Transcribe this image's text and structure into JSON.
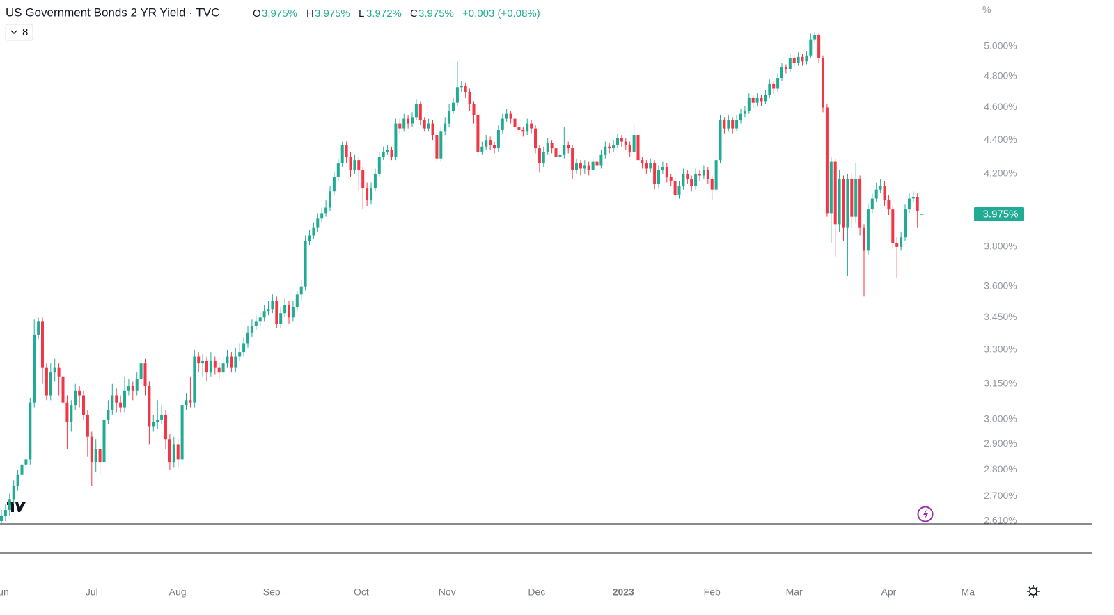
{
  "header": {
    "title": "US Government Bonds 2 YR Yield · TVC",
    "badge": "8",
    "o_label": "O",
    "o": "3.975%",
    "h_label": "H",
    "h": "3.975%",
    "l_label": "L",
    "l": "3.972%",
    "c_label": "C",
    "c": "3.975%",
    "change": "+0.003 (+0.08%)"
  },
  "chart_data": {
    "type": "candlestick",
    "log_scale": true,
    "up_color": "#22ab94",
    "down_color": "#f23645",
    "unit_label": "%",
    "last_price_label": "3.975%",
    "ylim": [
      2.6,
      5.33
    ],
    "yticks": [
      {
        "value": 2.61,
        "label": "2.610%"
      },
      {
        "value": 2.7,
        "label": "2.700%"
      },
      {
        "value": 2.8,
        "label": "2.800%"
      },
      {
        "value": 2.9,
        "label": "2.900%"
      },
      {
        "value": 3,
        "label": "3.000%"
      },
      {
        "value": 3.15,
        "label": "3.150%"
      },
      {
        "value": 3.3,
        "label": "3.300%"
      },
      {
        "value": 3.45,
        "label": "3.450%"
      },
      {
        "value": 3.6,
        "label": "3.600%"
      },
      {
        "value": 3.8,
        "label": "3.800%"
      },
      {
        "value": 4.2,
        "label": "4.200%"
      },
      {
        "value": 4.4,
        "label": "4.400%"
      },
      {
        "value": 4.6,
        "label": "4.600%"
      },
      {
        "value": 4.8,
        "label": "4.800%"
      },
      {
        "value": 5,
        "label": "5.000%"
      }
    ],
    "xlim": [
      -0.34,
      236.1
    ],
    "xticks": [
      {
        "value": 0.5,
        "label": "un"
      },
      {
        "value": 22,
        "label": "Jul"
      },
      {
        "value": 42.9,
        "label": "Aug"
      },
      {
        "value": 65.8,
        "label": "Sep"
      },
      {
        "value": 87.6,
        "label": "Oct"
      },
      {
        "value": 108.5,
        "label": "Nov"
      },
      {
        "value": 130.3,
        "label": "Dec"
      },
      {
        "value": 151.4,
        "label": "2023"
      },
      {
        "value": 173,
        "label": "Feb"
      },
      {
        "value": 193,
        "label": "Mar"
      },
      {
        "value": 216,
        "label": "Apr"
      },
      {
        "value": 235.3,
        "label": "Ma"
      }
    ],
    "open": [
      2.61,
      2.63,
      2.65,
      2.69,
      2.74,
      2.78,
      2.82,
      2.84,
      3.07,
      3.37,
      3.43,
      3.22,
      3.1,
      3.2,
      3.22,
      3.18,
      3.07,
      2.99,
      3.06,
      3.12,
      3.1,
      3.02,
      2.93,
      2.83,
      2.88,
      2.83,
      3.0,
      3.04,
      3.1,
      3.07,
      3.05,
      3.12,
      3.14,
      3.12,
      3.17,
      3.24,
      3.14,
      2.97,
      2.99,
      3.0,
      3.02,
      2.92,
      2.83,
      2.9,
      2.84,
      3.06,
      3.08,
      3.07,
      3.27,
      3.24,
      3.25,
      3.2,
      3.25,
      3.22,
      3.2,
      3.24,
      3.27,
      3.22,
      3.27,
      3.29,
      3.33,
      3.38,
      3.41,
      3.43,
      3.45,
      3.48,
      3.49,
      3.53,
      3.42,
      3.47,
      3.51,
      3.45,
      3.5,
      3.56,
      3.6,
      3.83,
      3.86,
      3.9,
      3.95,
      3.98,
      4.01,
      4.1,
      4.18,
      4.26,
      4.37,
      4.3,
      4.22,
      4.28,
      4.22,
      4.12,
      4.05,
      4.12,
      4.2,
      4.3,
      4.33,
      4.34,
      4.3,
      4.5,
      4.47,
      4.53,
      4.5,
      4.54,
      4.62,
      4.52,
      4.47,
      4.5,
      4.43,
      4.29,
      4.45,
      4.5,
      4.58,
      4.63,
      4.73,
      4.74,
      4.7,
      4.62,
      4.55,
      4.33,
      4.36,
      4.4,
      4.37,
      4.35,
      4.46,
      4.53,
      4.56,
      4.53,
      4.48,
      4.46,
      4.45,
      4.5,
      4.47,
      4.35,
      4.26,
      4.33,
      4.38,
      4.35,
      4.3,
      4.31,
      4.37,
      4.35,
      4.22,
      4.26,
      4.23,
      4.25,
      4.22,
      4.27,
      4.25,
      4.31,
      4.36,
      4.35,
      4.37,
      4.41,
      4.39,
      4.37,
      4.33,
      4.43,
      4.28,
      4.26,
      4.23,
      4.26,
      4.14,
      4.22,
      4.24,
      4.18,
      4.16,
      4.08,
      4.13,
      4.2,
      4.17,
      4.13,
      4.2,
      4.19,
      4.22,
      4.17,
      4.11,
      4.28,
      4.52,
      4.47,
      4.52,
      4.47,
      4.52,
      4.56,
      4.58,
      4.66,
      4.63,
      4.66,
      4.64,
      4.68,
      4.75,
      4.72,
      4.79,
      4.86,
      4.85,
      4.92,
      4.89,
      4.93,
      4.9,
      4.94,
      5.05,
      5.08,
      4.92,
      4.6,
      3.98,
      4.27,
      3.92,
      4.17,
      3.9,
      4.17,
      3.96,
      4.17,
      3.9,
      3.78,
      4.0,
      4.06,
      4.11,
      4.13,
      4.05,
      4.0,
      3.82,
      3.8,
      3.85,
      4.0,
      4.06,
      4.07,
      3.975
    ],
    "high": [
      2.65,
      2.67,
      2.71,
      2.76,
      2.8,
      2.84,
      2.86,
      3.09,
      3.44,
      3.45,
      3.45,
      3.24,
      3.24,
      3.26,
      3.24,
      3.2,
      3.1,
      3.08,
      3.15,
      3.14,
      3.12,
      3.04,
      2.95,
      2.92,
      2.9,
      3.02,
      3.08,
      3.15,
      3.13,
      3.1,
      3.18,
      3.17,
      3.16,
      3.2,
      3.26,
      3.26,
      3.16,
      3.02,
      3.08,
      3.06,
      3.04,
      2.94,
      2.93,
      2.92,
      3.08,
      3.11,
      3.18,
      3.3,
      3.29,
      3.28,
      3.27,
      3.29,
      3.27,
      3.24,
      3.27,
      3.3,
      3.29,
      3.31,
      3.33,
      3.36,
      3.41,
      3.44,
      3.46,
      3.48,
      3.51,
      3.53,
      3.56,
      3.55,
      3.5,
      3.54,
      3.53,
      3.53,
      3.58,
      3.63,
      3.86,
      3.89,
      3.93,
      3.98,
      4.01,
      4.05,
      4.13,
      4.21,
      4.29,
      4.39,
      4.39,
      4.33,
      4.31,
      4.3,
      4.24,
      4.15,
      4.15,
      4.23,
      4.33,
      4.36,
      4.37,
      4.36,
      4.53,
      4.53,
      4.56,
      4.55,
      4.57,
      4.65,
      4.64,
      4.54,
      4.53,
      4.52,
      4.45,
      4.48,
      4.54,
      4.62,
      4.66,
      4.9,
      4.77,
      4.76,
      4.72,
      4.64,
      4.57,
      4.39,
      4.43,
      4.42,
      4.39,
      4.49,
      4.56,
      4.59,
      4.58,
      4.55,
      4.5,
      4.48,
      4.53,
      4.52,
      4.49,
      4.37,
      4.36,
      4.41,
      4.4,
      4.37,
      4.34,
      4.48,
      4.39,
      4.37,
      4.29,
      4.28,
      4.28,
      4.27,
      4.3,
      4.29,
      4.34,
      4.39,
      4.38,
      4.4,
      4.44,
      4.43,
      4.41,
      4.39,
      4.5,
      4.45,
      4.3,
      4.28,
      4.29,
      4.28,
      4.25,
      4.27,
      4.26,
      4.2,
      4.18,
      4.16,
      4.23,
      4.22,
      4.19,
      4.23,
      4.22,
      4.25,
      4.24,
      4.19,
      4.31,
      4.55,
      4.54,
      4.55,
      4.54,
      4.55,
      4.59,
      4.61,
      4.69,
      4.68,
      4.69,
      4.68,
      4.71,
      4.78,
      4.77,
      4.82,
      4.89,
      4.88,
      4.95,
      4.94,
      4.96,
      4.95,
      4.97,
      5.09,
      5.1,
      5.09,
      4.94,
      4.62,
      4.3,
      4.29,
      4.22,
      4.19,
      4.2,
      4.2,
      4.26,
      4.19,
      3.92,
      4.03,
      4.09,
      4.15,
      4.17,
      4.16,
      4.08,
      4.02,
      3.85,
      3.88,
      4.03,
      4.09,
      4.1,
      4.09,
      3.975
    ],
    "low": [
      2.6,
      2.61,
      2.63,
      2.67,
      2.72,
      2.76,
      2.8,
      2.82,
      3.05,
      3.35,
      3.15,
      3.08,
      3.08,
      3.16,
      3.1,
      2.92,
      2.88,
      2.95,
      3.04,
      3.05,
      3.0,
      2.85,
      2.74,
      2.79,
      2.78,
      2.8,
      2.98,
      3.02,
      3.03,
      3.03,
      3.03,
      3.1,
      3.08,
      3.1,
      3.15,
      3.1,
      2.9,
      2.95,
      2.96,
      2.98,
      2.88,
      2.8,
      2.81,
      2.81,
      2.82,
      3.04,
      3.05,
      3.05,
      3.2,
      3.18,
      3.16,
      3.18,
      3.19,
      3.17,
      3.18,
      3.22,
      3.2,
      3.2,
      3.25,
      3.27,
      3.31,
      3.36,
      3.39,
      3.41,
      3.43,
      3.46,
      3.47,
      3.4,
      3.4,
      3.45,
      3.42,
      3.43,
      3.48,
      3.53,
      3.58,
      3.81,
      3.84,
      3.88,
      3.93,
      3.96,
      3.99,
      4.08,
      4.16,
      4.24,
      4.26,
      4.18,
      4.2,
      4.1,
      4.0,
      4.02,
      4.03,
      4.1,
      4.18,
      4.28,
      4.31,
      4.28,
      4.28,
      4.44,
      4.45,
      4.47,
      4.48,
      4.52,
      4.49,
      4.45,
      4.45,
      4.4,
      4.27,
      4.27,
      4.43,
      4.48,
      4.56,
      4.61,
      4.7,
      4.66,
      4.58,
      4.5,
      4.3,
      4.31,
      4.34,
      4.34,
      4.32,
      4.33,
      4.44,
      4.51,
      4.5,
      4.45,
      4.43,
      4.42,
      4.43,
      4.44,
      4.32,
      4.21,
      4.24,
      4.31,
      4.32,
      4.27,
      4.28,
      4.29,
      4.32,
      4.17,
      4.2,
      4.19,
      4.2,
      4.19,
      4.2,
      4.22,
      4.23,
      4.29,
      4.32,
      4.33,
      4.35,
      4.36,
      4.34,
      4.3,
      4.31,
      4.25,
      4.23,
      4.2,
      4.21,
      4.11,
      4.12,
      4.2,
      4.15,
      4.13,
      4.05,
      4.06,
      4.11,
      4.14,
      4.1,
      4.11,
      4.16,
      4.17,
      4.14,
      4.05,
      4.09,
      4.26,
      4.44,
      4.45,
      4.44,
      4.45,
      4.5,
      4.54,
      4.56,
      4.6,
      4.61,
      4.61,
      4.62,
      4.66,
      4.69,
      4.7,
      4.77,
      4.82,
      4.83,
      4.86,
      4.87,
      4.87,
      4.88,
      4.92,
      5.03,
      4.89,
      4.57,
      3.96,
      3.82,
      3.75,
      3.88,
      3.83,
      3.65,
      3.9,
      3.93,
      3.86,
      3.55,
      3.76,
      3.98,
      4.04,
      4.09,
      4.02,
      3.97,
      3.79,
      3.64,
      3.78,
      3.83,
      3.98,
      4.04,
      3.9,
      3.972
    ],
    "close": [
      2.63,
      2.65,
      2.69,
      2.74,
      2.78,
      2.82,
      2.84,
      3.07,
      3.37,
      3.43,
      3.22,
      3.1,
      3.2,
      3.22,
      3.18,
      3.07,
      2.99,
      3.06,
      3.12,
      3.1,
      3.02,
      2.93,
      2.83,
      2.88,
      2.83,
      3.0,
      3.04,
      3.1,
      3.07,
      3.05,
      3.12,
      3.14,
      3.12,
      3.17,
      3.24,
      3.14,
      2.97,
      2.99,
      3.0,
      3.02,
      2.92,
      2.83,
      2.9,
      2.84,
      3.06,
      3.08,
      3.07,
      3.27,
      3.24,
      3.25,
      3.2,
      3.25,
      3.22,
      3.2,
      3.24,
      3.27,
      3.22,
      3.27,
      3.29,
      3.33,
      3.38,
      3.41,
      3.43,
      3.45,
      3.48,
      3.49,
      3.53,
      3.42,
      3.47,
      3.51,
      3.45,
      3.5,
      3.56,
      3.6,
      3.83,
      3.86,
      3.9,
      3.95,
      3.98,
      4.01,
      4.1,
      4.18,
      4.26,
      4.37,
      4.3,
      4.22,
      4.28,
      4.22,
      4.12,
      4.05,
      4.12,
      4.2,
      4.3,
      4.33,
      4.34,
      4.3,
      4.5,
      4.47,
      4.53,
      4.5,
      4.54,
      4.62,
      4.52,
      4.47,
      4.5,
      4.43,
      4.29,
      4.45,
      4.5,
      4.58,
      4.63,
      4.73,
      4.74,
      4.7,
      4.62,
      4.55,
      4.33,
      4.36,
      4.4,
      4.37,
      4.35,
      4.46,
      4.53,
      4.56,
      4.53,
      4.48,
      4.46,
      4.45,
      4.5,
      4.47,
      4.35,
      4.26,
      4.33,
      4.38,
      4.35,
      4.3,
      4.31,
      4.37,
      4.35,
      4.22,
      4.26,
      4.23,
      4.25,
      4.22,
      4.27,
      4.25,
      4.31,
      4.36,
      4.35,
      4.37,
      4.41,
      4.39,
      4.37,
      4.33,
      4.43,
      4.28,
      4.26,
      4.23,
      4.26,
      4.14,
      4.22,
      4.24,
      4.18,
      4.16,
      4.08,
      4.13,
      4.2,
      4.17,
      4.13,
      4.2,
      4.19,
      4.22,
      4.17,
      4.11,
      4.28,
      4.52,
      4.47,
      4.52,
      4.47,
      4.52,
      4.56,
      4.58,
      4.66,
      4.63,
      4.66,
      4.64,
      4.68,
      4.75,
      4.72,
      4.79,
      4.86,
      4.85,
      4.92,
      4.89,
      4.93,
      4.9,
      4.94,
      5.05,
      5.08,
      4.92,
      4.6,
      3.98,
      4.27,
      3.92,
      4.17,
      3.9,
      4.17,
      3.96,
      4.17,
      3.9,
      3.78,
      4.0,
      4.06,
      4.11,
      4.13,
      4.05,
      4.0,
      3.82,
      3.8,
      3.85,
      4.0,
      4.06,
      4.07,
      3.99,
      3.975
    ]
  }
}
